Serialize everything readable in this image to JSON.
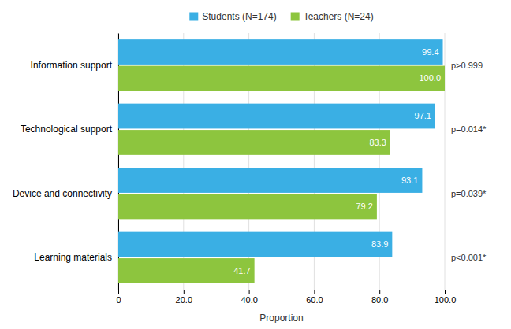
{
  "chart_data": {
    "type": "bar",
    "orientation": "horizontal",
    "categories": [
      "Learning materials",
      "Device and connectivity",
      "Technological support",
      "Information support"
    ],
    "series": [
      {
        "name": "Students (N=174)",
        "color": "#3AAFE4",
        "values": [
          83.9,
          93.1,
          97.1,
          99.4
        ]
      },
      {
        "name": "Teachers (N=24)",
        "color": "#8DC53E",
        "values": [
          41.7,
          79.2,
          83.3,
          100.0
        ],
        "value_labels": [
          "41.7",
          "79.2",
          "83.3",
          "100.0"
        ]
      }
    ],
    "annotations": [
      "p<0.001*",
      "p=0.039*",
      "p=0.014*",
      "p>0.999"
    ],
    "xlabel": "Proportion",
    "xlim": [
      0,
      100
    ],
    "xticks": [
      0,
      {
        "value": 20,
        "label": "20.0"
      },
      {
        "value": 40,
        "label": "40.0"
      },
      {
        "value": 60,
        "label": "60.0"
      },
      {
        "value": 80,
        "label": "80.0"
      },
      {
        "value": 100,
        "label": "100.0"
      }
    ],
    "grid": true,
    "legend": "top",
    "data_labels": true
  }
}
